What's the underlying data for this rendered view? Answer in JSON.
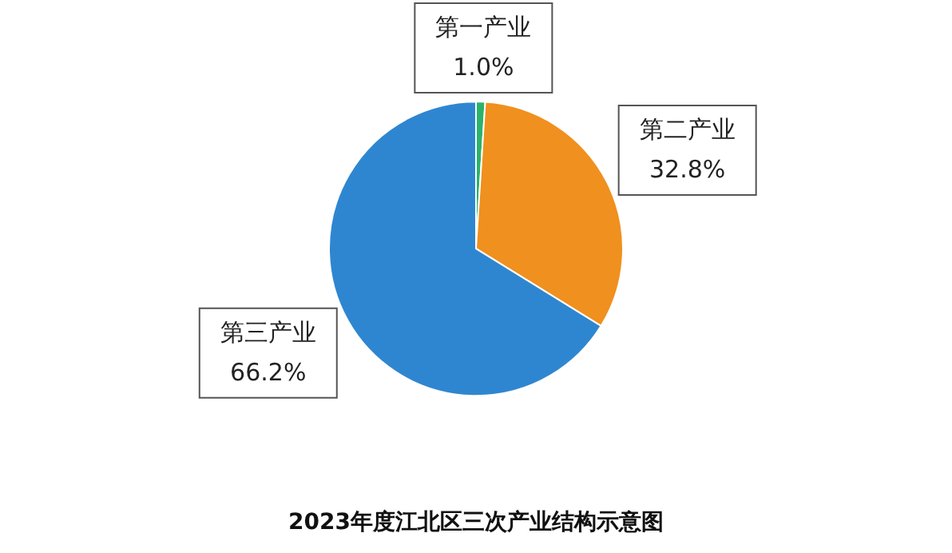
{
  "chart_data": {
    "type": "pie",
    "title": "2023年度江北区三次产业结构示意图",
    "categories": [
      "第一产业",
      "第二产业",
      "第三产业"
    ],
    "values": [
      1.0,
      32.8,
      66.2
    ],
    "value_labels": [
      "1.0%",
      "32.8%",
      "66.2%"
    ],
    "colors": [
      "#2bb36b",
      "#f0901e",
      "#2f86d0"
    ],
    "legend": false
  }
}
